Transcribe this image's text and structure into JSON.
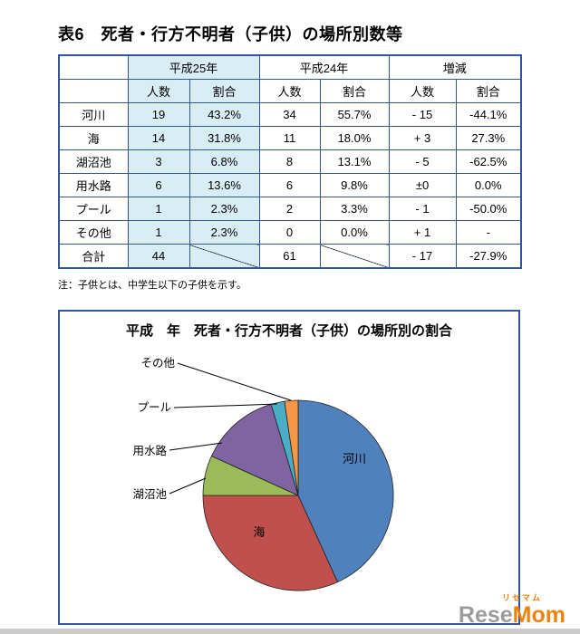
{
  "document": {
    "table_title": "表6　死者・行方不明者（子供）の場所別数等",
    "note": "注：子供とは、中学生以下の子供を示す。"
  },
  "table": {
    "col_groups": [
      "平成25年",
      "平成24年",
      "増減"
    ],
    "sub_header_num": "人数",
    "sub_header_pct": "割合",
    "rows": [
      {
        "label": "河川",
        "h25_num": "19",
        "h25_pct": "43.2%",
        "h24_num": "34",
        "h24_pct": "55.7%",
        "diff_num": "- 15",
        "diff_pct": "-44.1%"
      },
      {
        "label": "海",
        "h25_num": "14",
        "h25_pct": "31.8%",
        "h24_num": "11",
        "h24_pct": "18.0%",
        "diff_num": "+ 3",
        "diff_pct": "27.3%"
      },
      {
        "label": "湖沼池",
        "h25_num": "3",
        "h25_pct": "6.8%",
        "h24_num": "8",
        "h24_pct": "13.1%",
        "diff_num": "- 5",
        "diff_pct": "-62.5%"
      },
      {
        "label": "用水路",
        "h25_num": "6",
        "h25_pct": "13.6%",
        "h24_num": "6",
        "h24_pct": "9.8%",
        "diff_num": "±0",
        "diff_pct": "0.0%"
      },
      {
        "label": "プール",
        "h25_num": "1",
        "h25_pct": "2.3%",
        "h24_num": "2",
        "h24_pct": "3.3%",
        "diff_num": "- 1",
        "diff_pct": "-50.0%"
      },
      {
        "label": "その他",
        "h25_num": "1",
        "h25_pct": "2.3%",
        "h24_num": "0",
        "h24_pct": "0.0%",
        "diff_num": "+ 1",
        "diff_pct": "-"
      },
      {
        "label": "合計",
        "h25_num": "44",
        "h24_num": "61",
        "diff_num": "- 17",
        "diff_pct": "-27.9%"
      }
    ]
  },
  "chart_data": {
    "type": "pie",
    "title": "平成　年　死者・行方不明者（子供）の場所別の割合",
    "categories": [
      "河川",
      "海",
      "湖沼池",
      "用水路",
      "プール",
      "その他"
    ],
    "values": [
      43.2,
      31.8,
      6.8,
      13.6,
      2.3,
      2.3
    ],
    "colors": [
      "#4f81bd",
      "#c0504d",
      "#9bbb59",
      "#8064a2",
      "#4bacc6",
      "#f79646"
    ],
    "unit": "%",
    "start_angle_deg": 0,
    "direction": "clockwise",
    "legend_position": "none",
    "label_style": "callout-left"
  },
  "watermark": {
    "kana": "リセマム",
    "name_gray": "Rese",
    "name_orange": "Mom"
  }
}
